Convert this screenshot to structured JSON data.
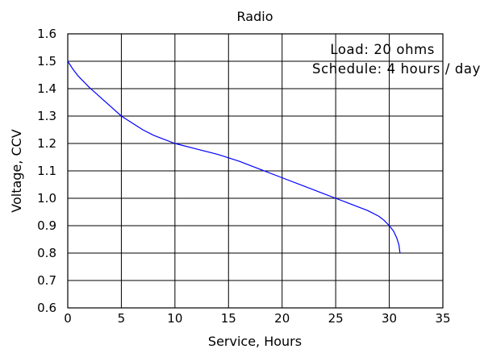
{
  "chart_data": {
    "type": "line",
    "title": "Radio",
    "xlabel": "Service, Hours",
    "ylabel": "Voltage, CCV",
    "xlim": [
      0,
      35
    ],
    "ylim": [
      0.6,
      1.6
    ],
    "x_ticks": [
      "0",
      "5",
      "10",
      "15",
      "20",
      "25",
      "30",
      "35"
    ],
    "y_ticks": [
      "0.6",
      "0.7",
      "0.8",
      "0.9",
      "1.0",
      "1.1",
      "1.2",
      "1.3",
      "1.4",
      "1.5",
      "1.6"
    ],
    "grid": true,
    "annotations": [
      "Load: 20 ohms",
      "Schedule: 4 hours / day"
    ],
    "line_color": "#0000ff",
    "series": [
      {
        "x": [
          0,
          0.5,
          1,
          2,
          3,
          4,
          5,
          6,
          7,
          8,
          9,
          10,
          12,
          14,
          16,
          18,
          20,
          22,
          24,
          25,
          26,
          27,
          28,
          29,
          29.5,
          30,
          30.4,
          30.7,
          30.9,
          31
        ],
        "y": [
          1.5,
          1.47,
          1.445,
          1.405,
          1.37,
          1.335,
          1.3,
          1.275,
          1.25,
          1.23,
          1.215,
          1.2,
          1.18,
          1.16,
          1.135,
          1.105,
          1.075,
          1.045,
          1.015,
          1.0,
          0.985,
          0.97,
          0.955,
          0.935,
          0.92,
          0.9,
          0.88,
          0.855,
          0.83,
          0.8
        ]
      }
    ]
  }
}
